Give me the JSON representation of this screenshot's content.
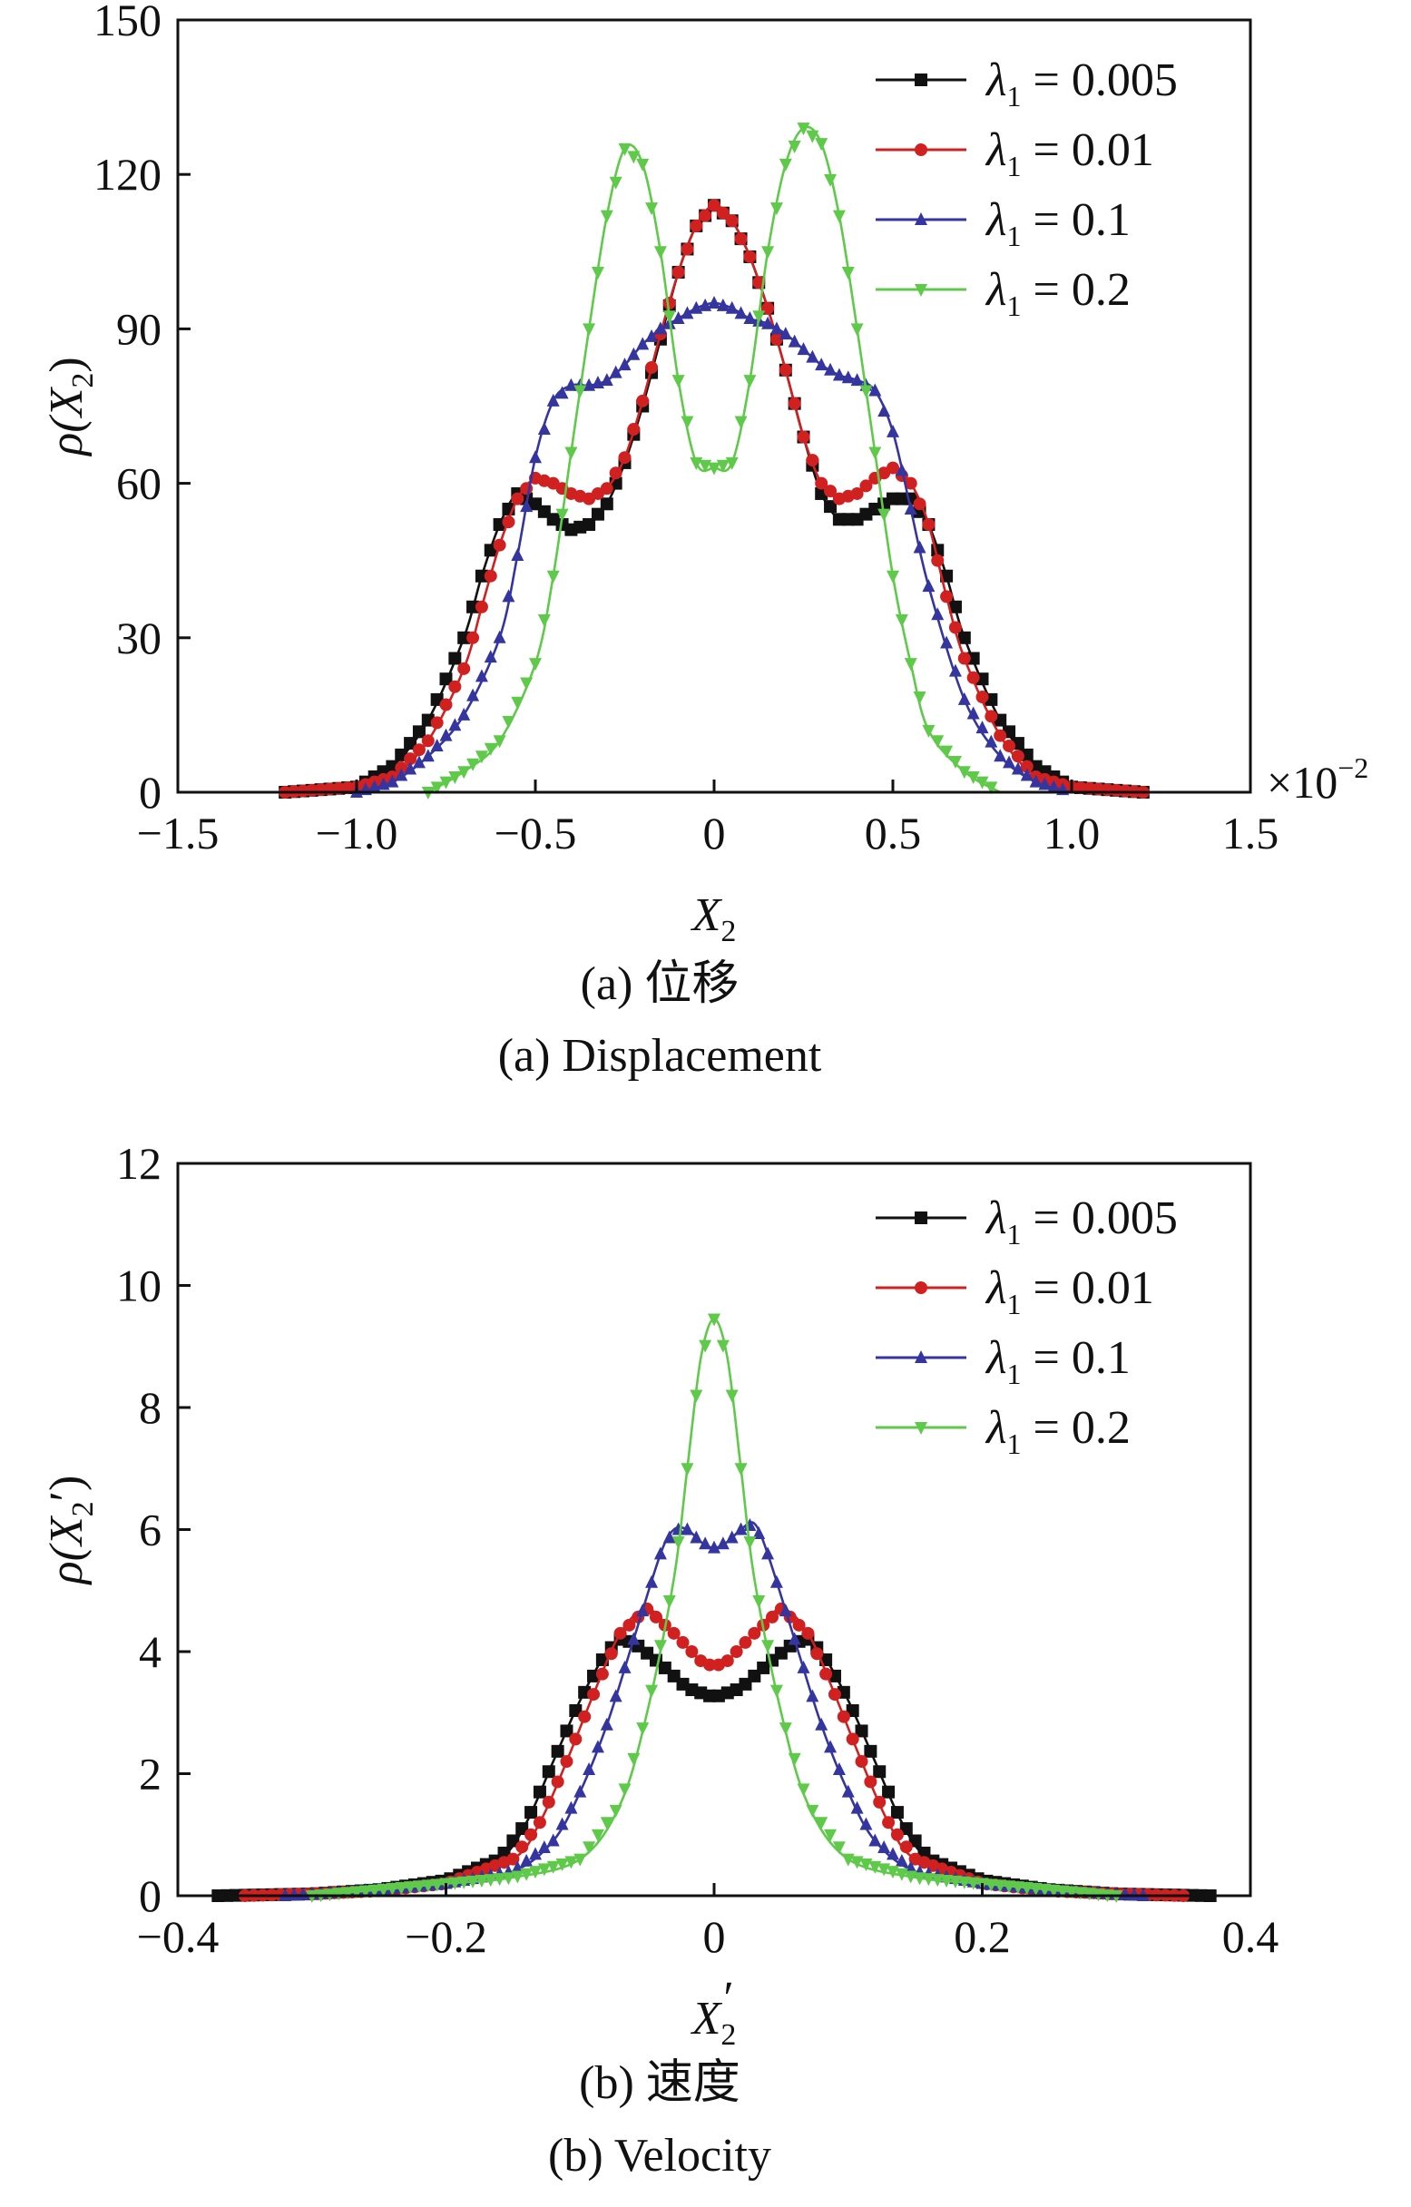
{
  "chart_data": [
    {
      "type": "line",
      "title": "",
      "xlabel": "X",
      "xlabel_sub": "2",
      "ylabel": "ρ(X",
      "ylabel_sub": "2",
      "ylabel_tail": ")",
      "x_multiplier": "×10",
      "x_multiplier_exp": "−2",
      "xlim": [
        -1.5,
        1.5
      ],
      "ylim": [
        0,
        150
      ],
      "xticks": [
        "−1.5",
        "−1.0",
        "−0.5",
        "0",
        "0.5",
        "1.0",
        "1.5"
      ],
      "xtick_values": [
        -1.5,
        -1.0,
        -0.5,
        0,
        0.5,
        1.0,
        1.5
      ],
      "yticks": [
        "0",
        "30",
        "60",
        "90",
        "120",
        "150"
      ],
      "ytick_values": [
        0,
        30,
        60,
        90,
        120,
        150
      ],
      "legend_position": "top-right",
      "caption_cn": "(a)  位移",
      "caption_en": "(a)  Displacement",
      "series": [
        {
          "name": "λ",
          "name_sub": "1",
          "name_value": " = 0.005",
          "color": "#111111",
          "marker": "square",
          "points": [
            [
              -1.2,
              0
            ],
            [
              -1.0,
              1
            ],
            [
              -0.9,
              5
            ],
            [
              -0.8,
              14
            ],
            [
              -0.7,
              30
            ],
            [
              -0.65,
              42
            ],
            [
              -0.6,
              52
            ],
            [
              -0.55,
              58
            ],
            [
              -0.5,
              56
            ],
            [
              -0.45,
              53
            ],
            [
              -0.4,
              51
            ],
            [
              -0.35,
              52
            ],
            [
              -0.3,
              56
            ],
            [
              -0.25,
              64
            ],
            [
              -0.2,
              75
            ],
            [
              -0.15,
              88
            ],
            [
              -0.1,
              101
            ],
            [
              -0.05,
              110
            ],
            [
              0,
              114
            ],
            [
              0.05,
              111
            ],
            [
              0.1,
              104
            ],
            [
              0.15,
              94
            ],
            [
              0.2,
              82
            ],
            [
              0.25,
              69
            ],
            [
              0.3,
              58
            ],
            [
              0.35,
              53
            ],
            [
              0.4,
              53
            ],
            [
              0.45,
              55
            ],
            [
              0.5,
              57
            ],
            [
              0.55,
              57
            ],
            [
              0.6,
              52
            ],
            [
              0.65,
              42
            ],
            [
              0.7,
              30
            ],
            [
              0.8,
              14
            ],
            [
              0.9,
              5
            ],
            [
              1.0,
              1
            ],
            [
              1.2,
              0
            ]
          ]
        },
        {
          "name": "λ",
          "name_sub": "1",
          "name_value": " = 0.01",
          "color": "#d02020",
          "marker": "circle",
          "points": [
            [
              -1.2,
              0
            ],
            [
              -1.0,
              1
            ],
            [
              -0.9,
              3
            ],
            [
              -0.8,
              10
            ],
            [
              -0.7,
              24
            ],
            [
              -0.65,
              36
            ],
            [
              -0.6,
              48
            ],
            [
              -0.55,
              57
            ],
            [
              -0.5,
              61
            ],
            [
              -0.45,
              60
            ],
            [
              -0.4,
              58
            ],
            [
              -0.35,
              57
            ],
            [
              -0.3,
              59
            ],
            [
              -0.25,
              65
            ],
            [
              -0.2,
              76
            ],
            [
              -0.15,
              89
            ],
            [
              -0.1,
              101
            ],
            [
              -0.05,
              110
            ],
            [
              0,
              114
            ],
            [
              0.05,
              111
            ],
            [
              0.1,
              104
            ],
            [
              0.15,
              94
            ],
            [
              0.2,
              82
            ],
            [
              0.25,
              69
            ],
            [
              0.3,
              60
            ],
            [
              0.35,
              57
            ],
            [
              0.4,
              58
            ],
            [
              0.45,
              61
            ],
            [
              0.5,
              63
            ],
            [
              0.55,
              60
            ],
            [
              0.6,
              52
            ],
            [
              0.65,
              38
            ],
            [
              0.7,
              26
            ],
            [
              0.8,
              11
            ],
            [
              0.9,
              3
            ],
            [
              1.0,
              1
            ],
            [
              1.2,
              0
            ]
          ]
        },
        {
          "name": "λ",
          "name_sub": "1",
          "name_value": " = 0.1",
          "color": "#3535a0",
          "marker": "triangle",
          "points": [
            [
              -1.0,
              0
            ],
            [
              -0.9,
              2
            ],
            [
              -0.8,
              7
            ],
            [
              -0.7,
              15
            ],
            [
              -0.6,
              30
            ],
            [
              -0.55,
              46
            ],
            [
              -0.5,
              65
            ],
            [
              -0.45,
              76
            ],
            [
              -0.4,
              79
            ],
            [
              -0.35,
              79
            ],
            [
              -0.3,
              80
            ],
            [
              -0.25,
              83
            ],
            [
              -0.2,
              87
            ],
            [
              -0.15,
              90
            ],
            [
              -0.1,
              92
            ],
            [
              -0.05,
              94
            ],
            [
              0,
              95
            ],
            [
              0.05,
              94
            ],
            [
              0.1,
              92
            ],
            [
              0.15,
              91
            ],
            [
              0.2,
              89
            ],
            [
              0.25,
              86
            ],
            [
              0.3,
              83
            ],
            [
              0.35,
              81
            ],
            [
              0.4,
              80
            ],
            [
              0.45,
              78
            ],
            [
              0.5,
              70
            ],
            [
              0.55,
              55
            ],
            [
              0.6,
              40
            ],
            [
              0.7,
              18
            ],
            [
              0.8,
              7
            ],
            [
              0.9,
              2
            ],
            [
              1.0,
              0
            ]
          ]
        },
        {
          "name": "λ",
          "name_sub": "1",
          "name_value": " = 0.2",
          "color": "#5fc94a",
          "marker": "triangle-down",
          "points": [
            [
              -0.8,
              0
            ],
            [
              -0.7,
              4
            ],
            [
              -0.6,
              10
            ],
            [
              -0.5,
              25
            ],
            [
              -0.45,
              42
            ],
            [
              -0.4,
              66
            ],
            [
              -0.35,
              90
            ],
            [
              -0.3,
              112
            ],
            [
              -0.25,
              125
            ],
            [
              -0.2,
              122
            ],
            [
              -0.15,
              105
            ],
            [
              -0.1,
              80
            ],
            [
              -0.05,
              64
            ],
            [
              0,
              63
            ],
            [
              0.05,
              64
            ],
            [
              0.1,
              80
            ],
            [
              0.15,
              105
            ],
            [
              0.2,
              122
            ],
            [
              0.25,
              129
            ],
            [
              0.3,
              126
            ],
            [
              0.35,
              112
            ],
            [
              0.4,
              90
            ],
            [
              0.45,
              66
            ],
            [
              0.5,
              42
            ],
            [
              0.55,
              25
            ],
            [
              0.6,
              12
            ],
            [
              0.7,
              4
            ],
            [
              0.8,
              0
            ]
          ]
        }
      ]
    },
    {
      "type": "line",
      "title": "",
      "xlabel": "X",
      "xlabel_sub": "2",
      "xlabel_prime": "′",
      "ylabel": "ρ(X",
      "ylabel_sub": "2",
      "ylabel_tail": "′)",
      "xlim": [
        -0.4,
        0.4
      ],
      "ylim": [
        0,
        12
      ],
      "xticks": [
        "−0.4",
        "−0.2",
        "0",
        "0.2",
        "0.4"
      ],
      "xtick_values": [
        -0.4,
        -0.2,
        0,
        0.2,
        0.4
      ],
      "yticks": [
        "0",
        "2",
        "4",
        "6",
        "8",
        "10",
        "12"
      ],
      "ytick_values": [
        0,
        2,
        4,
        6,
        8,
        10,
        12
      ],
      "legend_position": "top-right",
      "caption_cn": "(b)  速度",
      "caption_en": "(b)  Velocity",
      "series": [
        {
          "name": "λ",
          "name_sub": "1",
          "name_value": " = 0.005",
          "color": "#111111",
          "marker": "square",
          "points": [
            [
              -0.37,
              0
            ],
            [
              -0.3,
              0.03
            ],
            [
              -0.25,
              0.1
            ],
            [
              -0.2,
              0.25
            ],
            [
              -0.16,
              0.6
            ],
            [
              -0.14,
              1.2
            ],
            [
              -0.12,
              2.2
            ],
            [
              -0.1,
              3.2
            ],
            [
              -0.08,
              4.0
            ],
            [
              -0.07,
              4.2
            ],
            [
              -0.06,
              4.15
            ],
            [
              -0.04,
              3.8
            ],
            [
              -0.02,
              3.4
            ],
            [
              0,
              3.25
            ],
            [
              0.02,
              3.4
            ],
            [
              0.04,
              3.8
            ],
            [
              0.06,
              4.15
            ],
            [
              0.07,
              4.2
            ],
            [
              0.08,
              4.0
            ],
            [
              0.1,
              3.2
            ],
            [
              0.12,
              2.2
            ],
            [
              0.14,
              1.2
            ],
            [
              0.16,
              0.6
            ],
            [
              0.2,
              0.25
            ],
            [
              0.25,
              0.1
            ],
            [
              0.3,
              0.03
            ],
            [
              0.37,
              0
            ]
          ]
        },
        {
          "name": "λ",
          "name_sub": "1",
          "name_value": " = 0.01",
          "color": "#d02020",
          "marker": "circle",
          "points": [
            [
              -0.35,
              0
            ],
            [
              -0.3,
              0.03
            ],
            [
              -0.25,
              0.08
            ],
            [
              -0.2,
              0.2
            ],
            [
              -0.15,
              0.6
            ],
            [
              -0.13,
              1.2
            ],
            [
              -0.11,
              2.2
            ],
            [
              -0.09,
              3.3
            ],
            [
              -0.07,
              4.3
            ],
            [
              -0.05,
              4.7
            ],
            [
              -0.03,
              4.3
            ],
            [
              -0.01,
              3.85
            ],
            [
              0,
              3.75
            ],
            [
              0.01,
              3.85
            ],
            [
              0.03,
              4.3
            ],
            [
              0.05,
              4.7
            ],
            [
              0.07,
              4.3
            ],
            [
              0.09,
              3.3
            ],
            [
              0.11,
              2.2
            ],
            [
              0.13,
              1.2
            ],
            [
              0.15,
              0.6
            ],
            [
              0.2,
              0.2
            ],
            [
              0.25,
              0.08
            ],
            [
              0.3,
              0.03
            ],
            [
              0.35,
              0
            ]
          ]
        },
        {
          "name": "λ",
          "name_sub": "1",
          "name_value": " = 0.1",
          "color": "#3535a0",
          "marker": "triangle",
          "points": [
            [
              -0.32,
              0
            ],
            [
              -0.25,
              0.1
            ],
            [
              -0.2,
              0.2
            ],
            [
              -0.15,
              0.4
            ],
            [
              -0.12,
              0.9
            ],
            [
              -0.1,
              1.7
            ],
            [
              -0.08,
              2.8
            ],
            [
              -0.06,
              4.2
            ],
            [
              -0.04,
              5.6
            ],
            [
              -0.03,
              6.0
            ],
            [
              -0.02,
              6.0
            ],
            [
              -0.01,
              5.8
            ],
            [
              0,
              5.7
            ],
            [
              0.01,
              5.8
            ],
            [
              0.02,
              6.0
            ],
            [
              0.03,
              6.1
            ],
            [
              0.04,
              5.6
            ],
            [
              0.06,
              4.2
            ],
            [
              0.08,
              2.8
            ],
            [
              0.1,
              1.7
            ],
            [
              0.12,
              0.9
            ],
            [
              0.15,
              0.4
            ],
            [
              0.2,
              0.2
            ],
            [
              0.25,
              0.1
            ],
            [
              0.32,
              0
            ]
          ]
        },
        {
          "name": "λ",
          "name_sub": "1",
          "name_value": " = 0.2",
          "color": "#5fc94a",
          "marker": "triangle-down",
          "points": [
            [
              -0.3,
              0
            ],
            [
              -0.25,
              0.1
            ],
            [
              -0.2,
              0.2
            ],
            [
              -0.15,
              0.3
            ],
            [
              -0.1,
              0.6
            ],
            [
              -0.07,
              1.5
            ],
            [
              -0.05,
              3.0
            ],
            [
              -0.03,
              5.2
            ],
            [
              -0.02,
              7.0
            ],
            [
              -0.01,
              8.8
            ],
            [
              0,
              9.45
            ],
            [
              0.01,
              8.8
            ],
            [
              0.02,
              7.0
            ],
            [
              0.03,
              5.2
            ],
            [
              0.05,
              3.0
            ],
            [
              0.07,
              1.5
            ],
            [
              0.1,
              0.6
            ],
            [
              0.15,
              0.3
            ],
            [
              0.2,
              0.2
            ],
            [
              0.25,
              0.1
            ],
            [
              0.3,
              0
            ]
          ]
        }
      ]
    }
  ]
}
